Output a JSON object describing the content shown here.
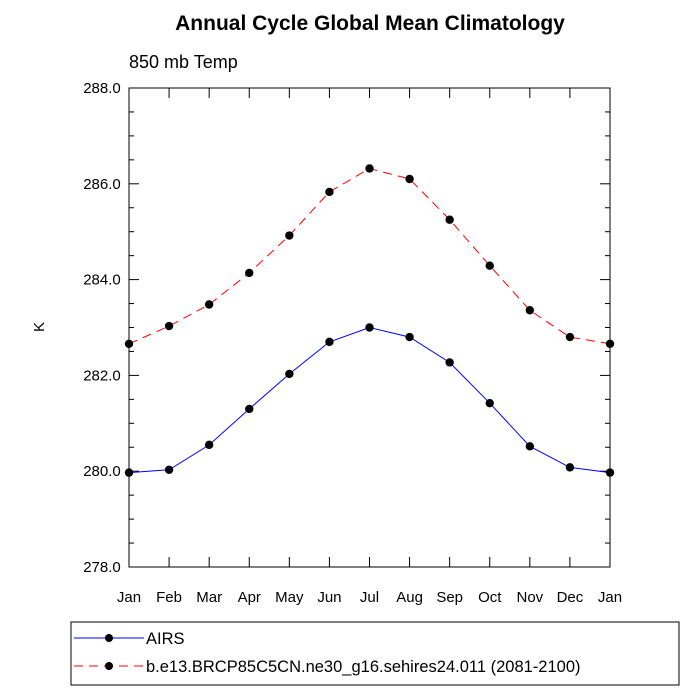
{
  "chart_data": {
    "type": "line",
    "title": "Annual Cycle Global Mean Climatology",
    "subtitle": "850 mb Temp",
    "xlabel": "",
    "ylabel": "K",
    "categories": [
      "Jan",
      "Feb",
      "Mar",
      "Apr",
      "May",
      "Jun",
      "Jul",
      "Aug",
      "Sep",
      "Oct",
      "Nov",
      "Dec",
      "Jan"
    ],
    "ylim": [
      278.0,
      288.0
    ],
    "yticks": [
      "278.0",
      "280.0",
      "282.0",
      "284.0",
      "286.0",
      "288.0"
    ],
    "grid": false,
    "legend_position": "bottom",
    "series": [
      {
        "name": "AIRS",
        "color": "#0000ff",
        "line_style": "solid",
        "marker": "filled-circle",
        "values": [
          279.97,
          280.03,
          280.55,
          281.3,
          282.03,
          282.7,
          283.0,
          282.8,
          282.27,
          281.42,
          280.52,
          280.08,
          279.97
        ]
      },
      {
        "name": "b.e13.BRCP85C5CN.ne30_g16.sehires24.011 (2081-2100)",
        "color": "#ff0000",
        "line_style": "dashed",
        "marker": "filled-circle",
        "values": [
          282.66,
          283.03,
          283.48,
          284.14,
          284.92,
          285.83,
          286.32,
          286.1,
          285.25,
          284.29,
          283.36,
          282.8,
          282.66
        ]
      }
    ]
  }
}
